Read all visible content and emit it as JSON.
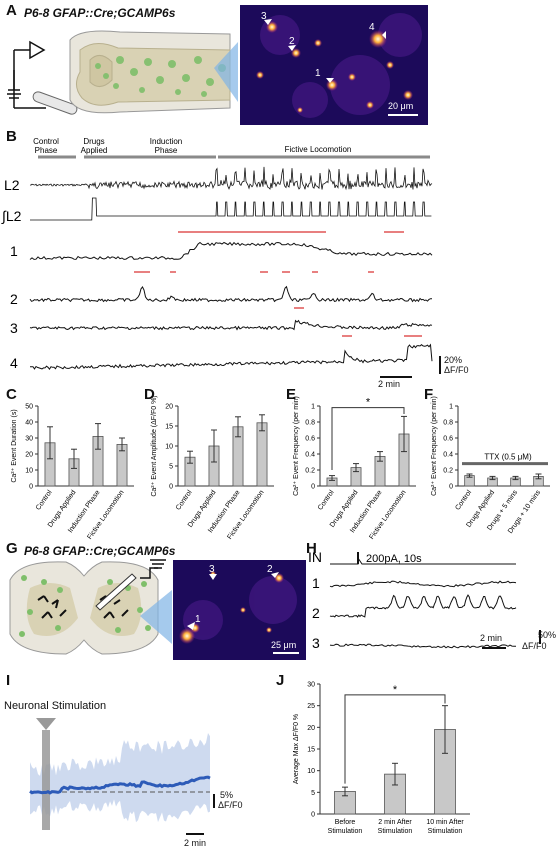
{
  "panel_a": {
    "label": "A",
    "genotype": "P6-8 GFAP::Cre;GCAMP6s",
    "cell_labels": [
      "3",
      "2",
      "4",
      "1"
    ],
    "scale": "20 μm"
  },
  "panel_b": {
    "label": "B",
    "phases": [
      "Control Phase",
      "Drugs Applied",
      "Induction Phase",
      "Fictive Locomotion"
    ],
    "traces": [
      "L2",
      "∫L2",
      "1",
      "2",
      "3",
      "4"
    ],
    "scale_y": "20%",
    "scale_y_unit": "ΔF/F0",
    "scale_x": "2 min"
  },
  "panel_g": {
    "label": "G",
    "genotype": "P6-8 GFAP::Cre;GCAMP6s",
    "cell_labels": [
      "3",
      "2",
      "1"
    ],
    "scale": "25 μm"
  },
  "panel_h": {
    "label": "H",
    "in_label": "IN",
    "stim": "200pA, 10s",
    "traces": [
      "1",
      "2",
      "3"
    ],
    "scale_y": "50%",
    "scale_y_unit": "ΔF/F0",
    "scale_x": "2 min"
  },
  "panel_i": {
    "label": "I",
    "title": "Neuronal Stimulation",
    "scale_y": "5%",
    "scale_y_unit": "ΔF/F0",
    "scale_x": "2 min"
  },
  "chart_data": [
    {
      "panel": "C",
      "type": "bar",
      "ylabel": "Ca²⁺ Event Duration (s)",
      "ylim": [
        0,
        50
      ],
      "yticks": [
        0,
        10,
        20,
        30,
        40,
        50
      ],
      "categories": [
        "Control",
        "Drugs Applied",
        "Induction Phase",
        "Fictive Locomotion"
      ],
      "values": [
        27,
        17,
        31,
        26
      ],
      "errors": [
        10,
        6,
        8,
        4
      ]
    },
    {
      "panel": "D",
      "type": "bar",
      "ylabel": "Ca²⁺ Event Amplitude (ΔF/F0 %)",
      "ylim": [
        0,
        20
      ],
      "yticks": [
        0,
        5,
        10,
        15,
        20
      ],
      "categories": [
        "Control",
        "Drugs Applied",
        "Induction Phase",
        "Fictive Locomotion"
      ],
      "values": [
        7.2,
        10,
        14.8,
        15.8
      ],
      "errors": [
        1.5,
        4,
        2.5,
        2
      ]
    },
    {
      "panel": "E",
      "type": "bar",
      "ylabel": "Ca²⁺ Event Frequency (per min)",
      "ylim": [
        0,
        1
      ],
      "yticks": [
        0,
        0.2,
        0.4,
        0.6,
        0.8,
        1
      ],
      "categories": [
        "Control",
        "Drugs Applied",
        "Induction Phase",
        "Fictive Locomotion"
      ],
      "values": [
        0.1,
        0.23,
        0.37,
        0.65
      ],
      "errors": [
        0.03,
        0.05,
        0.06,
        0.22
      ],
      "significance": "*"
    },
    {
      "panel": "F",
      "type": "bar",
      "ylabel": "Ca²⁺ Event Frequency (per min)",
      "ylim": [
        0,
        1
      ],
      "yticks": [
        0,
        0.2,
        0.4,
        0.6,
        0.8,
        1
      ],
      "categories": [
        "Control",
        "Drugs Applied",
        "Drugs + 5 mins",
        "Drugs + 10 mins"
      ],
      "values": [
        0.13,
        0.1,
        0.1,
        0.12
      ],
      "errors": [
        0.02,
        0.02,
        0.02,
        0.03
      ],
      "annotation": "TTX (0.5 μM)"
    },
    {
      "panel": "J",
      "type": "bar",
      "ylabel": "Average Max ΔF/F0 %",
      "ylim": [
        0,
        30
      ],
      "yticks": [
        0,
        5,
        10,
        15,
        20,
        25,
        30
      ],
      "categories": [
        "Before Stimulation",
        "2 min After Stimulation",
        "10 min After Stimulation"
      ],
      "values": [
        5.2,
        9.2,
        19.5
      ],
      "errors": [
        1,
        2.5,
        5.5
      ],
      "significance": "*"
    }
  ],
  "colors": {
    "bar": "#c8c8c8",
    "bar_edge": "#555555",
    "event_marker": "#e05555",
    "phase_bar": "#8a8a8a",
    "blue_mean": "#2d5bb8",
    "blue_band": "#c5d3ec",
    "tissue": "#d9d2b4",
    "cell": "#7fbf6a"
  }
}
